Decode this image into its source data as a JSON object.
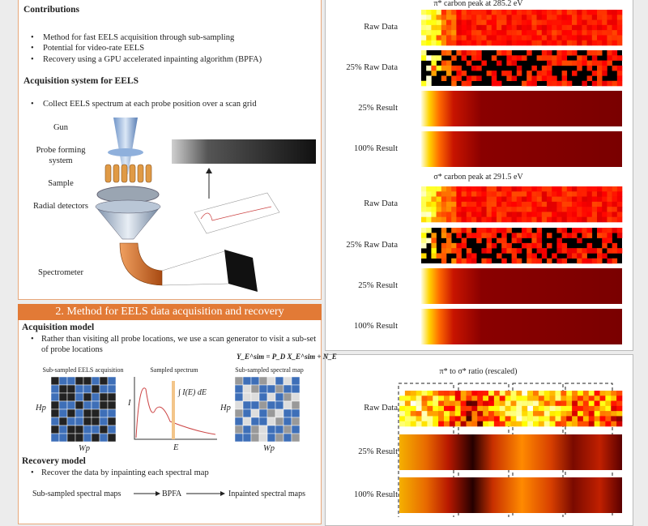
{
  "contributions": {
    "title": "Contributions",
    "items": [
      "Method for fast EELS acquisition through sub-sampling",
      "Potential for video-rate EELS",
      "Recovery using a GPU accelerated inpainting algorithm (BPFA)"
    ]
  },
  "acquisition_system": {
    "title": "Acquisition system for EELS",
    "items": [
      "Collect EELS spectrum at each probe position over a scan grid"
    ],
    "labels": [
      "Gun",
      "Probe forming system",
      "Sample",
      "Radial detectors",
      "Spectrometer"
    ]
  },
  "section2": {
    "title": "2. Method for EELS data acquisition and recovery",
    "acquisition_model": {
      "title": "Acquisition model",
      "items": [
        "Rather than visiting all probe locations, we use a scan generator to visit a sub-set of probe locations"
      ],
      "formula": "Y_E^sim = P_D X_E^sim + N_E",
      "panel_titles": [
        "Sub-sampled EELS acquisition",
        "Sampled spectrum",
        "Sub-sampled spectral map"
      ],
      "axis_labels": [
        "Hp",
        "Wp",
        "I",
        "E",
        "∫ I(E) dE",
        "Hp",
        "Wp"
      ]
    },
    "recovery_model": {
      "title": "Recovery model",
      "items": [
        "Recover the data by inpainting each spectral map"
      ],
      "flow": [
        "Sub-sampled spectral maps",
        "BPFA",
        "Inpainted spectral maps"
      ]
    }
  },
  "results": {
    "panels": [
      {
        "title": "π* carbon peak at 285.2 eV",
        "rows": [
          "Raw Data",
          "25% Raw Data",
          "25% Result",
          "100% Result"
        ]
      },
      {
        "title": "σ* carbon peak at 291.5 eV",
        "rows": [
          "Raw Data",
          "25% Raw Data",
          "25% Result",
          "100% Result"
        ]
      },
      {
        "title": "π* to σ* ratio (rescaled)",
        "rows": [
          "Raw Data",
          "25% Result",
          "100% Result"
        ]
      }
    ]
  }
}
